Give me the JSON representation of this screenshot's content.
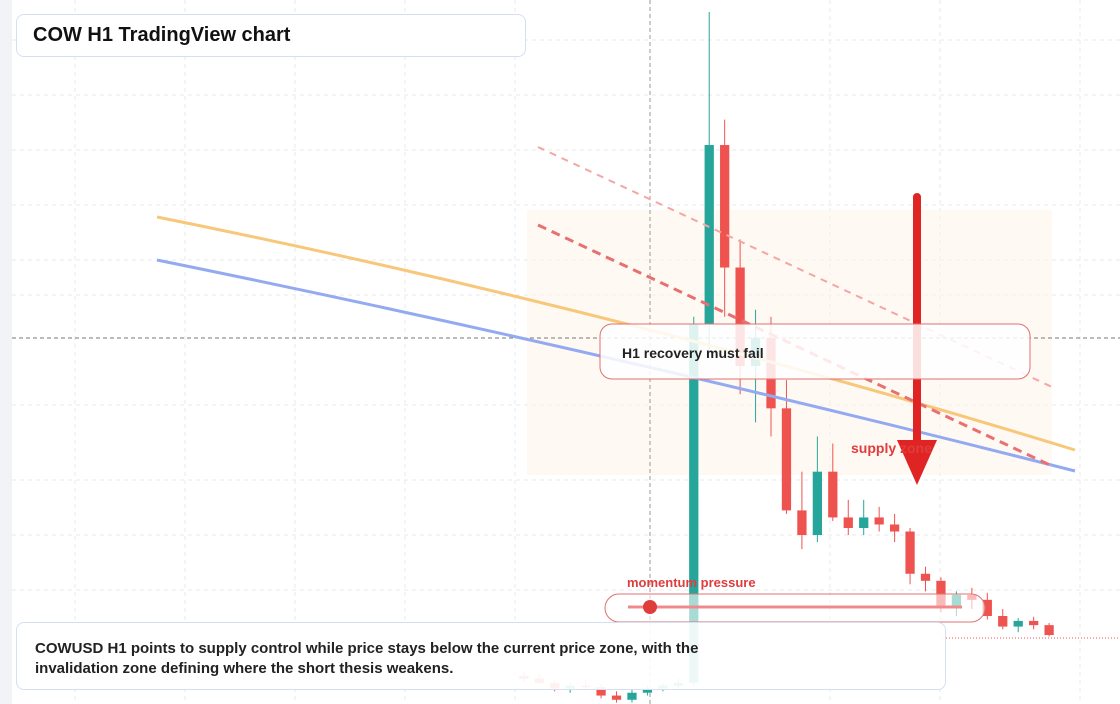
{
  "chart_data": {
    "type": "candlestick",
    "title": "COW H1 TradingView chart",
    "annotations": [
      "H1 recovery must fail",
      "supply zone",
      "momentum pressure"
    ],
    "caption": "COWUSD H1 points to supply control while price stays below the current price zone, with the invalidation zone defining where the short thesis weakens.",
    "x": [
      0,
      1,
      2,
      3,
      4,
      5,
      6,
      7,
      8,
      9,
      10,
      11,
      12,
      13,
      14,
      15,
      16,
      17,
      18,
      19,
      20,
      21,
      22,
      23,
      24,
      25,
      26,
      27,
      28,
      29,
      30,
      31,
      32,
      33,
      34
    ],
    "open": [
      4.0,
      3.6,
      3.0,
      2.2,
      2.6,
      2.4,
      1.2,
      0.6,
      1.6,
      2.2,
      2.6,
      3.0,
      54,
      79.4,
      62,
      48,
      52,
      42,
      27.5,
      24,
      33,
      26.5,
      25,
      26.5,
      25.5,
      24.5,
      18.5,
      17.5,
      14,
      15.5,
      14.8,
      12.5,
      11,
      11.8,
      11.2
    ],
    "high": [
      4.6,
      4.2,
      3.5,
      3.0,
      3.4,
      2.8,
      1.8,
      2.0,
      2.6,
      3.0,
      3.6,
      55,
      98.3,
      83,
      66,
      56,
      55,
      46,
      33,
      38,
      37,
      29,
      29,
      28,
      27,
      25,
      19.5,
      18,
      16,
      16.5,
      15.8,
      13.5,
      12.2,
      12.4,
      11.5
    ],
    "low": [
      3.2,
      2.8,
      1.8,
      1.6,
      2.0,
      0.8,
      0.2,
      0.2,
      1.2,
      1.8,
      2.2,
      2.6,
      50,
      55,
      44,
      40,
      38,
      27,
      22,
      23,
      26,
      24,
      24,
      24.5,
      23,
      17,
      16,
      13,
      12.5,
      13.5,
      12,
      10.6,
      10.2,
      10.6,
      9.6
    ],
    "close": [
      3.6,
      3.0,
      2.2,
      2.6,
      2.4,
      1.2,
      0.6,
      1.6,
      2.2,
      2.6,
      3.0,
      54,
      79.4,
      62,
      48,
      52,
      42,
      27.5,
      24,
      33,
      26.5,
      25,
      26.5,
      25.5,
      24.5,
      18.5,
      17.5,
      14,
      15.5,
      14.8,
      12.5,
      11,
      11.8,
      11.2,
      9.8
    ],
    "up_color": "#26a69a",
    "down_color": "#ef5350",
    "xlim": [
      -33,
      36
    ],
    "ylim": [
      0,
      100
    ]
  }
}
